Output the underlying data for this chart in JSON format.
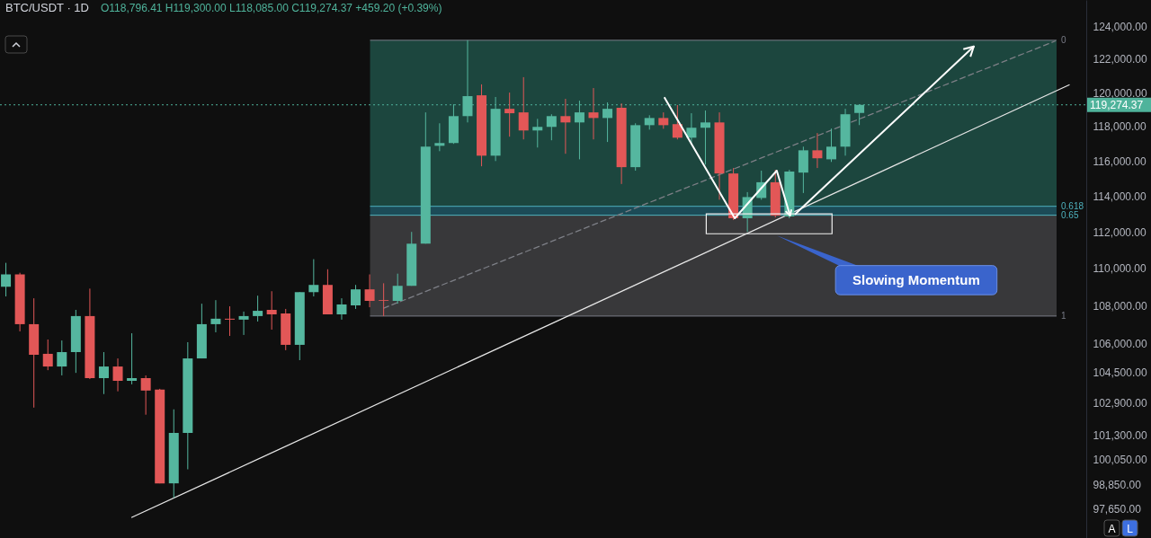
{
  "chart_data": {
    "type": "candlestick",
    "title": "BTC/USDT · 1D",
    "subtitle": "O118,796.41 H119,300.00 L118,085.00 C119,274.37 +459.20 (+0.39%)",
    "categories": [
      null,
      null,
      null,
      null,
      null,
      null,
      null,
      null,
      null,
      null,
      null,
      null,
      null,
      null,
      null,
      null,
      null,
      null,
      null,
      null,
      null,
      null,
      null,
      null,
      null,
      null,
      null,
      null,
      null,
      null,
      null,
      null,
      null,
      null,
      null,
      null,
      null,
      null,
      null,
      null,
      null,
      null,
      null,
      null,
      null,
      null,
      null,
      null,
      null,
      null,
      null,
      null,
      null,
      null,
      null,
      null,
      null,
      null,
      null,
      null,
      null,
      null,
      null,
      null,
      null,
      null,
      null,
      null,
      null,
      null,
      null,
      null,
      null,
      null,
      null,
      null,
      null
    ],
    "ohlc": [
      [
        109000,
        110300,
        108480,
        109670
      ],
      [
        109670,
        109760,
        106620,
        107000
      ],
      [
        107000,
        108380,
        102670,
        105390
      ],
      [
        105440,
        106190,
        104590,
        104780
      ],
      [
        104780,
        106140,
        104320,
        105530
      ],
      [
        105530,
        107760,
        104450,
        107430
      ],
      [
        107430,
        108900,
        104130,
        104180
      ],
      [
        104180,
        105530,
        103360,
        104780
      ],
      [
        104780,
        105200,
        103500,
        104040
      ],
      [
        104040,
        106520,
        103860,
        104180
      ],
      [
        104180,
        104320,
        102310,
        103540
      ],
      [
        103590,
        103630,
        98890,
        98890
      ],
      [
        98890,
        102580,
        98180,
        101390
      ],
      [
        101390,
        106050,
        99580,
        105200
      ],
      [
        105200,
        108090,
        105200,
        107000
      ],
      [
        107000,
        108280,
        106570,
        107290
      ],
      [
        107290,
        107950,
        106380,
        107240
      ],
      [
        107240,
        107670,
        106430,
        107430
      ],
      [
        107430,
        108520,
        107140,
        107710
      ],
      [
        107760,
        108760,
        106710,
        107520
      ],
      [
        107570,
        107810,
        105630,
        105910
      ],
      [
        105910,
        108710,
        105110,
        108710
      ],
      [
        108710,
        110500,
        108480,
        109100
      ],
      [
        109100,
        109950,
        107520,
        107520
      ],
      [
        107520,
        108380,
        107240,
        108050
      ],
      [
        108000,
        109100,
        107810,
        108860
      ],
      [
        108860,
        109670,
        107900,
        108240
      ],
      [
        108280,
        109190,
        107430,
        108240
      ],
      [
        108240,
        109710,
        108090,
        109050
      ],
      [
        109050,
        112000,
        109050,
        111350
      ],
      [
        111350,
        118830,
        111350,
        116830
      ],
      [
        116880,
        118190,
        116570,
        117040
      ],
      [
        117040,
        119310,
        116990,
        118610
      ],
      [
        118610,
        123150,
        118240,
        119790
      ],
      [
        119840,
        120490,
        115700,
        116310
      ],
      [
        116310,
        119740,
        116000,
        119040
      ],
      [
        119040,
        120000,
        117410,
        118780
      ],
      [
        118830,
        120920,
        117250,
        117770
      ],
      [
        117770,
        118450,
        116780,
        117980
      ],
      [
        117980,
        118720,
        117200,
        118610
      ],
      [
        118610,
        119630,
        116420,
        118240
      ],
      [
        118240,
        119520,
        116100,
        118830
      ],
      [
        118830,
        120270,
        117250,
        118500
      ],
      [
        118500,
        119420,
        117100,
        119040
      ],
      [
        119100,
        119360,
        114690,
        115650
      ],
      [
        115650,
        118190,
        115450,
        118080
      ],
      [
        118080,
        118660,
        117820,
        118500
      ],
      [
        118500,
        118830,
        117870,
        118080
      ],
      [
        118140,
        119260,
        117250,
        117350
      ],
      [
        117350,
        118780,
        116990,
        117930
      ],
      [
        117930,
        118940,
        115800,
        118240
      ],
      [
        118240,
        118830,
        113800,
        115290
      ],
      [
        115290,
        115600,
        112660,
        112760
      ],
      [
        112760,
        114230,
        112000,
        113950
      ],
      [
        113900,
        115450,
        113800,
        114790
      ],
      [
        114790,
        115500,
        112810,
        112910
      ],
      [
        112860,
        115500,
        112760,
        115400
      ],
      [
        115340,
        116830,
        114180,
        116620
      ],
      [
        116620,
        117620,
        115600,
        116160
      ],
      [
        116100,
        117880,
        115950,
        116830
      ],
      [
        116830,
        119040,
        116310,
        118720
      ],
      [
        118796.41,
        119300,
        118085,
        119274.37
      ],
      null,
      null,
      null,
      null,
      null,
      null,
      null,
      null,
      null,
      null,
      null,
      null,
      null,
      null,
      null
    ],
    "series": [
      {
        "type": "line",
        "values": [
          null,
          null,
          null,
          null,
          null,
          null,
          null,
          null,
          null,
          97240,
          null,
          null,
          null,
          null,
          null,
          null,
          null,
          null,
          null,
          null,
          null,
          null,
          null,
          null,
          null,
          null,
          null,
          null,
          null,
          null,
          null,
          null,
          null,
          null,
          null,
          null,
          null,
          null,
          null,
          null,
          null,
          null,
          null,
          null,
          null,
          null,
          null,
          null,
          null,
          null,
          null,
          null,
          null,
          null,
          null,
          null,
          null,
          null,
          null,
          null,
          null,
          null,
          null,
          null,
          null,
          null,
          null,
          null,
          null,
          null,
          null,
          null,
          null,
          null,
          null,
          null,
          120460
        ],
        "color": "#e6e6e6"
      },
      {
        "type": "line",
        "values": [
          null,
          null,
          null,
          null,
          null,
          null,
          null,
          null,
          null,
          null,
          null,
          null,
          null,
          null,
          null,
          null,
          null,
          null,
          null,
          null,
          null,
          null,
          null,
          null,
          null,
          null,
          null,
          107850,
          null,
          null,
          null,
          null,
          null,
          null,
          null,
          null,
          null,
          null,
          null,
          null,
          null,
          null,
          null,
          null,
          null,
          null,
          null,
          null,
          null,
          null,
          null,
          null,
          null,
          null,
          null,
          null,
          null,
          null,
          null,
          null,
          null,
          null,
          null,
          null,
          null,
          null,
          null,
          null,
          null,
          null,
          null,
          null,
          null,
          null,
          null,
          123100,
          null
        ],
        "color": "#7d7f86",
        "line_style": "dashed"
      }
    ],
    "log": true,
    "ylim": [
      96250,
      125630
    ],
    "yticks": [
      {
        "value": 124000,
        "label": "124,000.00"
      },
      {
        "value": 122000,
        "label": "122,000.00"
      },
      {
        "value": 120000,
        "label": "120,000.00"
      },
      {
        "value": 118000,
        "label": "118,000.00"
      },
      {
        "value": 116000,
        "label": "116,000.00"
      },
      {
        "value": 114000,
        "label": "114,000.00"
      },
      {
        "value": 112000,
        "label": "112,000.00"
      },
      {
        "value": 110000,
        "label": "110,000.00"
      },
      {
        "value": 108000,
        "label": "108,000.00"
      },
      {
        "value": 106000,
        "label": "106,000.00"
      },
      {
        "value": 104500,
        "label": "104,500.00"
      },
      {
        "value": 102900,
        "label": "102,900.00"
      },
      {
        "value": 101300,
        "label": "101,300.00"
      },
      {
        "value": 100050,
        "label": "100,050.00"
      },
      {
        "value": 98850,
        "label": "98,850.00"
      },
      {
        "value": 97650,
        "label": "97,650.00"
      }
    ],
    "bands": [
      {
        "axis": "y",
        "from": 113430,
        "to": 123150,
        "color": "#1e4a41"
      },
      {
        "axis": "y",
        "from": 112930,
        "to": 113430,
        "color": "#1d4f5c"
      },
      {
        "axis": "y",
        "from": 107430,
        "to": 112930,
        "color": "#3b3b3d"
      }
    ],
    "ref_lines": [
      {
        "axis": "y",
        "value": 123150,
        "color": "#787b86"
      },
      {
        "axis": "y",
        "value": 113430,
        "color": "#4fb3bf"
      },
      {
        "axis": "y",
        "value": 112930,
        "color": "#4fb3bf"
      },
      {
        "axis": "y",
        "value": 107430,
        "color": "#787b86"
      },
      {
        "axis": "y",
        "value": 119274.37,
        "label": "119,274.37",
        "color": "#4fb39b",
        "line_style": "dotted"
      }
    ],
    "annotations": [
      "0",
      "0.618",
      "0.65",
      "1",
      "Slowing Momentum",
      "A",
      "L"
    ]
  }
}
